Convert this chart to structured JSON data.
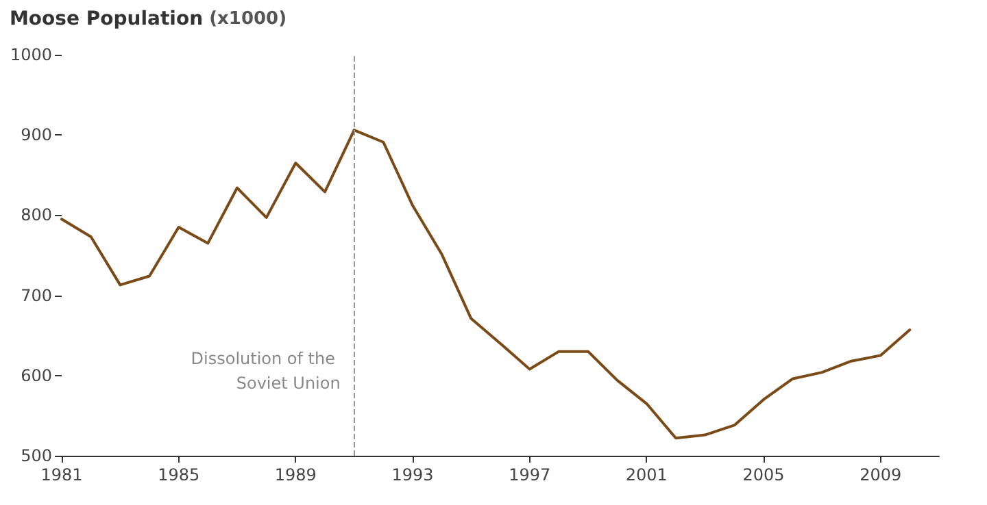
{
  "chart_data": {
    "type": "line",
    "title": "Moose Population (x1000)",
    "x": [
      1981,
      1982,
      1983,
      1984,
      1985,
      1986,
      1987,
      1988,
      1989,
      1990,
      1991,
      1992,
      1993,
      1994,
      1995,
      1996,
      1997,
      1998,
      1999,
      2000,
      2001,
      2002,
      2003,
      2004,
      2005,
      2006,
      2007,
      2008,
      2009,
      2010
    ],
    "series": [
      {
        "color": "#7a4a17",
        "values": [
          795,
          773,
          713,
          724,
          785,
          765,
          834,
          797,
          865,
          829,
          906,
          891,
          812,
          751,
          671,
          640,
          608,
          630,
          630,
          594,
          565,
          522,
          526,
          538,
          570,
          596,
          604,
          618,
          625,
          657
        ]
      }
    ],
    "xlim": [
      1981,
      2011
    ],
    "xticks": [
      1981,
      1985,
      1989,
      1993,
      1997,
      2001,
      2005,
      2009
    ],
    "ylim": [
      500,
      1000
    ],
    "yticks": [
      500,
      600,
      700,
      800,
      900,
      1000
    ],
    "ref_lines": [
      {
        "axis": "x",
        "value": 1991,
        "label": "Dissolution of the Soviet Union",
        "color": "#999999",
        "line_style": "dashed"
      }
    ],
    "grid": false,
    "marker": "none",
    "line_style": "solid"
  }
}
